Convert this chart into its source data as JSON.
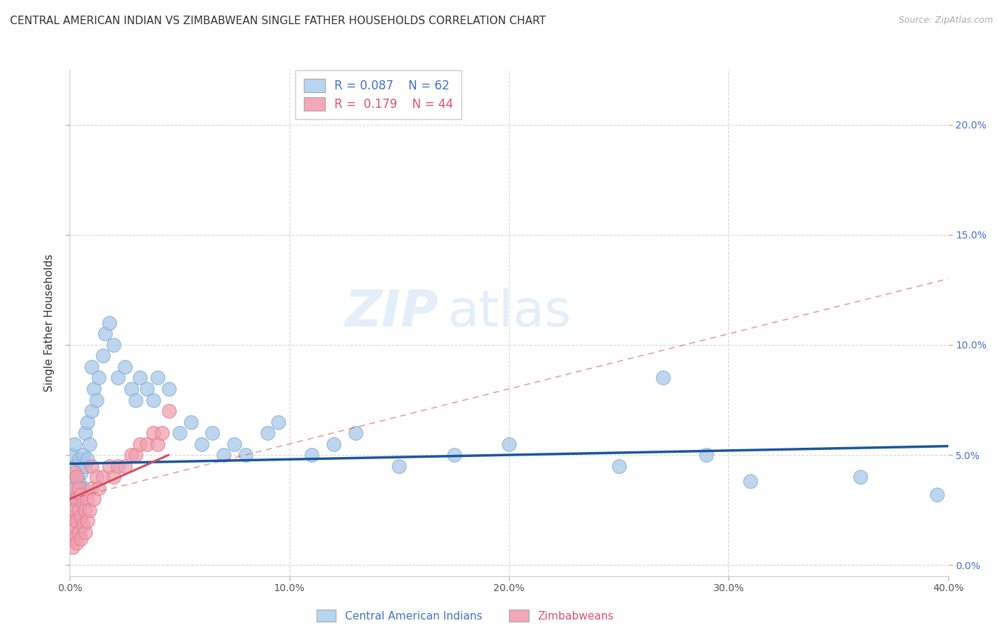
{
  "title": "CENTRAL AMERICAN INDIAN VS ZIMBABWEAN SINGLE FATHER HOUSEHOLDS CORRELATION CHART",
  "source": "Source: ZipAtlas.com",
  "ylabel": "Single Father Households",
  "xlim": [
    0,
    0.4
  ],
  "ylim": [
    -0.005,
    0.225
  ],
  "xticks": [
    0.0,
    0.1,
    0.2,
    0.3,
    0.4
  ],
  "yticks": [
    0.0,
    0.05,
    0.1,
    0.15,
    0.2
  ],
  "ytick_labels_right": [
    "0.0%",
    "5.0%",
    "10.0%",
    "15.0%",
    "20.0%"
  ],
  "xtick_labels": [
    "0.0%",
    "10.0%",
    "20.0%",
    "30.0%",
    "40.0%"
  ],
  "blue_R": "0.087",
  "blue_N": "62",
  "pink_R": "0.179",
  "pink_N": "44",
  "blue_scatter_x": [
    0.001,
    0.001,
    0.001,
    0.002,
    0.002,
    0.002,
    0.002,
    0.003,
    0.003,
    0.003,
    0.004,
    0.004,
    0.004,
    0.005,
    0.005,
    0.005,
    0.006,
    0.006,
    0.007,
    0.007,
    0.008,
    0.008,
    0.009,
    0.01,
    0.01,
    0.011,
    0.012,
    0.013,
    0.015,
    0.016,
    0.018,
    0.02,
    0.022,
    0.025,
    0.028,
    0.03,
    0.032,
    0.035,
    0.038,
    0.04,
    0.045,
    0.05,
    0.055,
    0.06,
    0.065,
    0.07,
    0.075,
    0.08,
    0.09,
    0.095,
    0.11,
    0.12,
    0.13,
    0.15,
    0.175,
    0.2,
    0.25,
    0.27,
    0.29,
    0.31,
    0.36,
    0.395
  ],
  "blue_scatter_y": [
    0.03,
    0.04,
    0.05,
    0.025,
    0.035,
    0.045,
    0.055,
    0.02,
    0.03,
    0.04,
    0.028,
    0.038,
    0.048,
    0.022,
    0.032,
    0.042,
    0.035,
    0.05,
    0.045,
    0.06,
    0.048,
    0.065,
    0.055,
    0.07,
    0.09,
    0.08,
    0.075,
    0.085,
    0.095,
    0.105,
    0.11,
    0.1,
    0.085,
    0.09,
    0.08,
    0.075,
    0.085,
    0.08,
    0.075,
    0.085,
    0.08,
    0.06,
    0.065,
    0.055,
    0.06,
    0.05,
    0.055,
    0.05,
    0.06,
    0.065,
    0.05,
    0.055,
    0.06,
    0.045,
    0.05,
    0.055,
    0.045,
    0.085,
    0.05,
    0.038,
    0.04,
    0.032
  ],
  "pink_scatter_x": [
    0.001,
    0.001,
    0.001,
    0.001,
    0.002,
    0.002,
    0.002,
    0.002,
    0.002,
    0.003,
    0.003,
    0.003,
    0.003,
    0.004,
    0.004,
    0.004,
    0.005,
    0.005,
    0.005,
    0.006,
    0.006,
    0.007,
    0.007,
    0.008,
    0.008,
    0.009,
    0.01,
    0.01,
    0.011,
    0.012,
    0.013,
    0.015,
    0.018,
    0.02,
    0.022,
    0.025,
    0.028,
    0.03,
    0.032,
    0.035,
    0.038,
    0.04,
    0.042,
    0.045
  ],
  "pink_scatter_y": [
    0.008,
    0.015,
    0.022,
    0.03,
    0.012,
    0.018,
    0.025,
    0.035,
    0.042,
    0.01,
    0.02,
    0.03,
    0.04,
    0.015,
    0.025,
    0.035,
    0.012,
    0.022,
    0.032,
    0.018,
    0.028,
    0.015,
    0.025,
    0.02,
    0.03,
    0.025,
    0.035,
    0.045,
    0.03,
    0.04,
    0.035,
    0.04,
    0.045,
    0.04,
    0.045,
    0.045,
    0.05,
    0.05,
    0.055,
    0.055,
    0.06,
    0.055,
    0.06,
    0.07
  ],
  "blue_line_x": [
    0.0,
    0.4
  ],
  "blue_line_y": [
    0.046,
    0.054
  ],
  "pink_solid_line_x": [
    0.0,
    0.045
  ],
  "pink_solid_line_y": [
    0.03,
    0.05
  ],
  "pink_dashed_line_x": [
    0.0,
    0.4
  ],
  "pink_dashed_line_y": [
    0.03,
    0.13
  ],
  "watermark_zip": "ZIP",
  "watermark_atlas": "atlas",
  "background_color": "#ffffff",
  "plot_bg_color": "#ffffff",
  "grid_color": "#d8d8d8",
  "blue_scatter_color": "#a8c8e8",
  "blue_scatter_edge": "#7aaad0",
  "blue_line_color": "#1a56a0",
  "pink_scatter_color": "#f0a0b0",
  "pink_scatter_edge": "#e07888",
  "pink_line_color": "#d05060",
  "legend_box_blue": "#b8d4f0",
  "legend_box_pink": "#f4a8b8",
  "title_fontsize": 11,
  "axis_label_fontsize": 11,
  "tick_fontsize": 10,
  "right_tick_color": "#4472c4"
}
